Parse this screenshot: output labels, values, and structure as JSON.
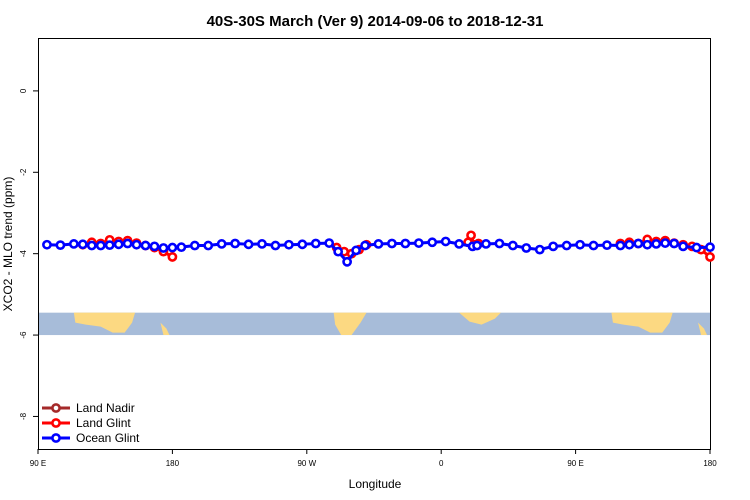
{
  "chart_data": {
    "type": "line",
    "title": "40S-30S March (Ver 9)   2014-09-06 to 2018-12-31",
    "xlabel": "Longitude",
    "ylabel": "XCO2 - MLO trend (ppm)",
    "xlim": [
      90,
      450
    ],
    "ylim": [
      -8.8,
      1.3
    ],
    "x_ticks": [
      {
        "value": 90,
        "label": "90 E"
      },
      {
        "value": 180,
        "label": "180"
      },
      {
        "value": 270,
        "label": "90 W"
      },
      {
        "value": 360,
        "label": "0"
      },
      {
        "value": 450,
        "label": "90 E"
      },
      {
        "value": 540,
        "label": "180"
      }
    ],
    "x_ticks_note": "plot spans 90E to 180 (x from 90 to 540 in unwrapped degrees east)",
    "y_ticks": [
      {
        "value": 0,
        "label": "0"
      },
      {
        "value": -2,
        "label": "-2"
      },
      {
        "value": -4,
        "label": "-4"
      },
      {
        "value": -6,
        "label": "-6"
      },
      {
        "value": -8,
        "label": "-8"
      }
    ],
    "land_band": {
      "ymin": -6.0,
      "ymax": -5.45,
      "ocean_color": "#a7bcd9",
      "land_color": "#fcd982"
    },
    "legend": {
      "position": "bottom-left",
      "entries": [
        {
          "label": "Land Nadir",
          "color": "#a52a2a"
        },
        {
          "label": "Land Glint",
          "color": "#ff0000"
        },
        {
          "label": "Ocean Glint",
          "color": "#0000ff"
        }
      ]
    },
    "series": [
      {
        "name": "Land Glint",
        "color": "#ff0000",
        "segments": [
          {
            "x": [
              120,
              126,
              132,
              138,
              144,
              150,
              156,
              162,
              168,
              174,
              180
            ],
            "y": [
              -3.78,
              -3.72,
              -3.75,
              -3.66,
              -3.7,
              -3.68,
              -3.74,
              -3.8,
              -3.85,
              -3.95,
              -4.08
            ]
          },
          {
            "x": [
              290,
              295,
              300,
              305,
              310
            ],
            "y": [
              -3.85,
              -3.95,
              -4.0,
              -3.9,
              -3.78
            ]
          },
          {
            "x": [
              378,
              380,
              382,
              385
            ],
            "y": [
              -3.72,
              -3.55,
              -3.78,
              -3.75
            ]
          },
          {
            "x": [
              480,
              486,
              492,
              498,
              504,
              510,
              516,
              522,
              528,
              534,
              540
            ],
            "y": [
              -3.75,
              -3.72,
              -3.75,
              -3.65,
              -3.7,
              -3.68,
              -3.74,
              -3.78,
              -3.82,
              -3.9,
              -4.08
            ]
          }
        ]
      },
      {
        "name": "Ocean Glint",
        "color": "#0000ff",
        "segments": [
          {
            "x": [
              96,
              105,
              114,
              120,
              126,
              132,
              138,
              144,
              150,
              156,
              162,
              168,
              174,
              180,
              186,
              195,
              204,
              213,
              222,
              231,
              240,
              249,
              258,
              267,
              276,
              285,
              291,
              297,
              303,
              309,
              318,
              327,
              336,
              345,
              354,
              363,
              372,
              381,
              384,
              390,
              399,
              408,
              417,
              426,
              435,
              444,
              453,
              462,
              471,
              480,
              486,
              492,
              498,
              504,
              510,
              516,
              522,
              531,
              540
            ],
            "y": [
              -3.78,
              -3.79,
              -3.76,
              -3.77,
              -3.8,
              -3.8,
              -3.79,
              -3.77,
              -3.75,
              -3.78,
              -3.8,
              -3.82,
              -3.86,
              -3.85,
              -3.84,
              -3.8,
              -3.8,
              -3.76,
              -3.75,
              -3.77,
              -3.76,
              -3.8,
              -3.78,
              -3.77,
              -3.75,
              -3.74,
              -3.95,
              -4.2,
              -3.92,
              -3.8,
              -3.76,
              -3.75,
              -3.75,
              -3.74,
              -3.72,
              -3.7,
              -3.76,
              -3.82,
              -3.8,
              -3.76,
              -3.75,
              -3.8,
              -3.86,
              -3.9,
              -3.82,
              -3.8,
              -3.78,
              -3.8,
              -3.79,
              -3.8,
              -3.78,
              -3.75,
              -3.78,
              -3.76,
              -3.74,
              -3.75,
              -3.82,
              -3.85,
              -3.84
            ]
          }
        ]
      }
    ]
  }
}
